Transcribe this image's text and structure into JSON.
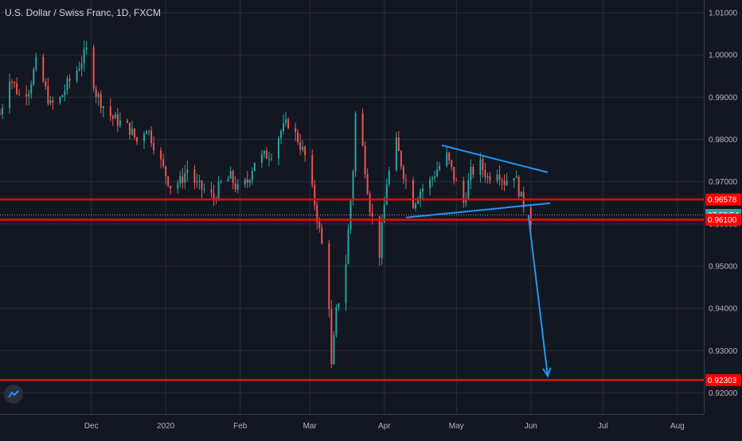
{
  "header": {
    "title": "U.S. Dollar / Swiss Franc, 1D, FXCM"
  },
  "icons": {
    "logo": "tradingview-logo-icon"
  },
  "colors": {
    "background": "#131722",
    "grid": "#2a2e39",
    "up": "#26a69a",
    "down": "#ef5350",
    "level": "#ff0000",
    "drawing": "#2196f3",
    "axis_text": "#b2b5be"
  },
  "price_scale": {
    "ticks": [
      "1.01000",
      "1.00000",
      "0.99000",
      "0.98000",
      "0.97000",
      "0.96000",
      "0.95000",
      "0.94000",
      "0.93000",
      "0.92000"
    ],
    "tags": [
      {
        "label": "0.96578",
        "type": "level"
      },
      {
        "label": "07:58:54",
        "type": "countdown"
      },
      {
        "label": "0.96100",
        "type": "level"
      },
      {
        "label": "0.92303",
        "type": "level"
      }
    ]
  },
  "time_axis": {
    "labels": [
      "Dec",
      "2020",
      "Feb",
      "Mar",
      "Apr",
      "May",
      "Jun",
      "Jul",
      "Aug"
    ]
  },
  "chart_data": {
    "type": "candlestick",
    "symbol": "U.S. Dollar / Swiss Franc",
    "timeframe": "1D",
    "source": "FXCM",
    "ylim": [
      0.915,
      1.013
    ],
    "x_range": [
      "2019-10-24",
      "2020-08-12"
    ],
    "close_path": [
      [
        "2019-10-24",
        0.986
      ],
      [
        "2019-10-28",
        0.995
      ],
      [
        "2019-11-01",
        0.9905
      ],
      [
        "2019-11-05",
        0.992
      ],
      [
        "2019-11-08",
        0.998
      ],
      [
        "2019-11-11",
        0.9935
      ],
      [
        "2019-11-14",
        0.988
      ],
      [
        "2019-11-18",
        0.9895
      ],
      [
        "2019-11-21",
        0.993
      ],
      [
        "2019-11-25",
        0.9965
      ],
      [
        "2019-11-29",
        1.001
      ],
      [
        "2019-12-03",
        0.991
      ],
      [
        "2019-12-06",
        0.988
      ],
      [
        "2019-12-10",
        0.985
      ],
      [
        "2019-12-13",
        0.984
      ],
      [
        "2019-12-17",
        0.9825
      ],
      [
        "2019-12-20",
        0.9795
      ],
      [
        "2019-12-24",
        0.983
      ],
      [
        "2019-12-27",
        0.979
      ],
      [
        "2019-12-31",
        0.973
      ],
      [
        "2020-01-03",
        0.969
      ],
      [
        "2020-01-07",
        0.97
      ],
      [
        "2020-01-10",
        0.973
      ],
      [
        "2020-01-14",
        0.969
      ],
      [
        "2020-01-17",
        0.968
      ],
      [
        "2020-01-21",
        0.966
      ],
      [
        "2020-01-24",
        0.9695
      ],
      [
        "2020-01-28",
        0.971
      ],
      [
        "2020-01-31",
        0.968
      ],
      [
        "2020-02-04",
        0.97
      ],
      [
        "2020-02-07",
        0.975
      ],
      [
        "2020-02-11",
        0.976
      ],
      [
        "2020-02-14",
        0.977
      ],
      [
        "2020-02-18",
        0.982
      ],
      [
        "2020-02-21",
        0.984
      ],
      [
        "2020-02-25",
        0.98
      ],
      [
        "2020-02-28",
        0.976
      ],
      [
        "2020-03-03",
        0.965
      ],
      [
        "2020-03-06",
        0.955
      ],
      [
        "2020-03-09",
        0.941
      ],
      [
        "2020-03-10",
        0.926
      ],
      [
        "2020-03-12",
        0.939
      ],
      [
        "2020-03-16",
        0.951
      ],
      [
        "2020-03-19",
        0.973
      ],
      [
        "2020-03-20",
        0.986
      ],
      [
        "2020-03-23",
        0.978
      ],
      [
        "2020-03-26",
        0.964
      ],
      [
        "2020-03-30",
        0.953
      ],
      [
        "2020-04-02",
        0.97
      ],
      [
        "2020-04-06",
        0.979
      ],
      [
        "2020-04-09",
        0.972
      ],
      [
        "2020-04-13",
        0.965
      ],
      [
        "2020-04-16",
        0.968
      ],
      [
        "2020-04-20",
        0.97
      ],
      [
        "2020-04-23",
        0.973
      ],
      [
        "2020-04-27",
        0.976
      ],
      [
        "2020-04-30",
        0.971
      ],
      [
        "2020-05-04",
        0.965
      ],
      [
        "2020-05-07",
        0.972
      ],
      [
        "2020-05-11",
        0.974
      ],
      [
        "2020-05-14",
        0.971
      ],
      [
        "2020-05-18",
        0.973
      ],
      [
        "2020-05-21",
        0.97
      ],
      [
        "2020-05-25",
        0.972
      ],
      [
        "2020-05-28",
        0.966
      ],
      [
        "2020-06-01",
        0.961
      ]
    ],
    "horizontal_levels": [
      0.96578,
      0.961,
      0.92303
    ],
    "drawings": [
      {
        "kind": "trendline",
        "from": [
          "2020-04-25",
          0.9786
        ],
        "to": [
          "2020-06-08",
          0.9722
        ]
      },
      {
        "kind": "trendline",
        "from": [
          "2020-04-10",
          0.9615
        ],
        "to": [
          "2020-06-09",
          0.9649
        ]
      },
      {
        "kind": "arrow",
        "from": [
          "2020-05-31",
          0.962
        ],
        "to": [
          "2020-06-08",
          0.924
        ]
      }
    ],
    "last_price": 0.96212,
    "countdown": "07:58:54"
  }
}
